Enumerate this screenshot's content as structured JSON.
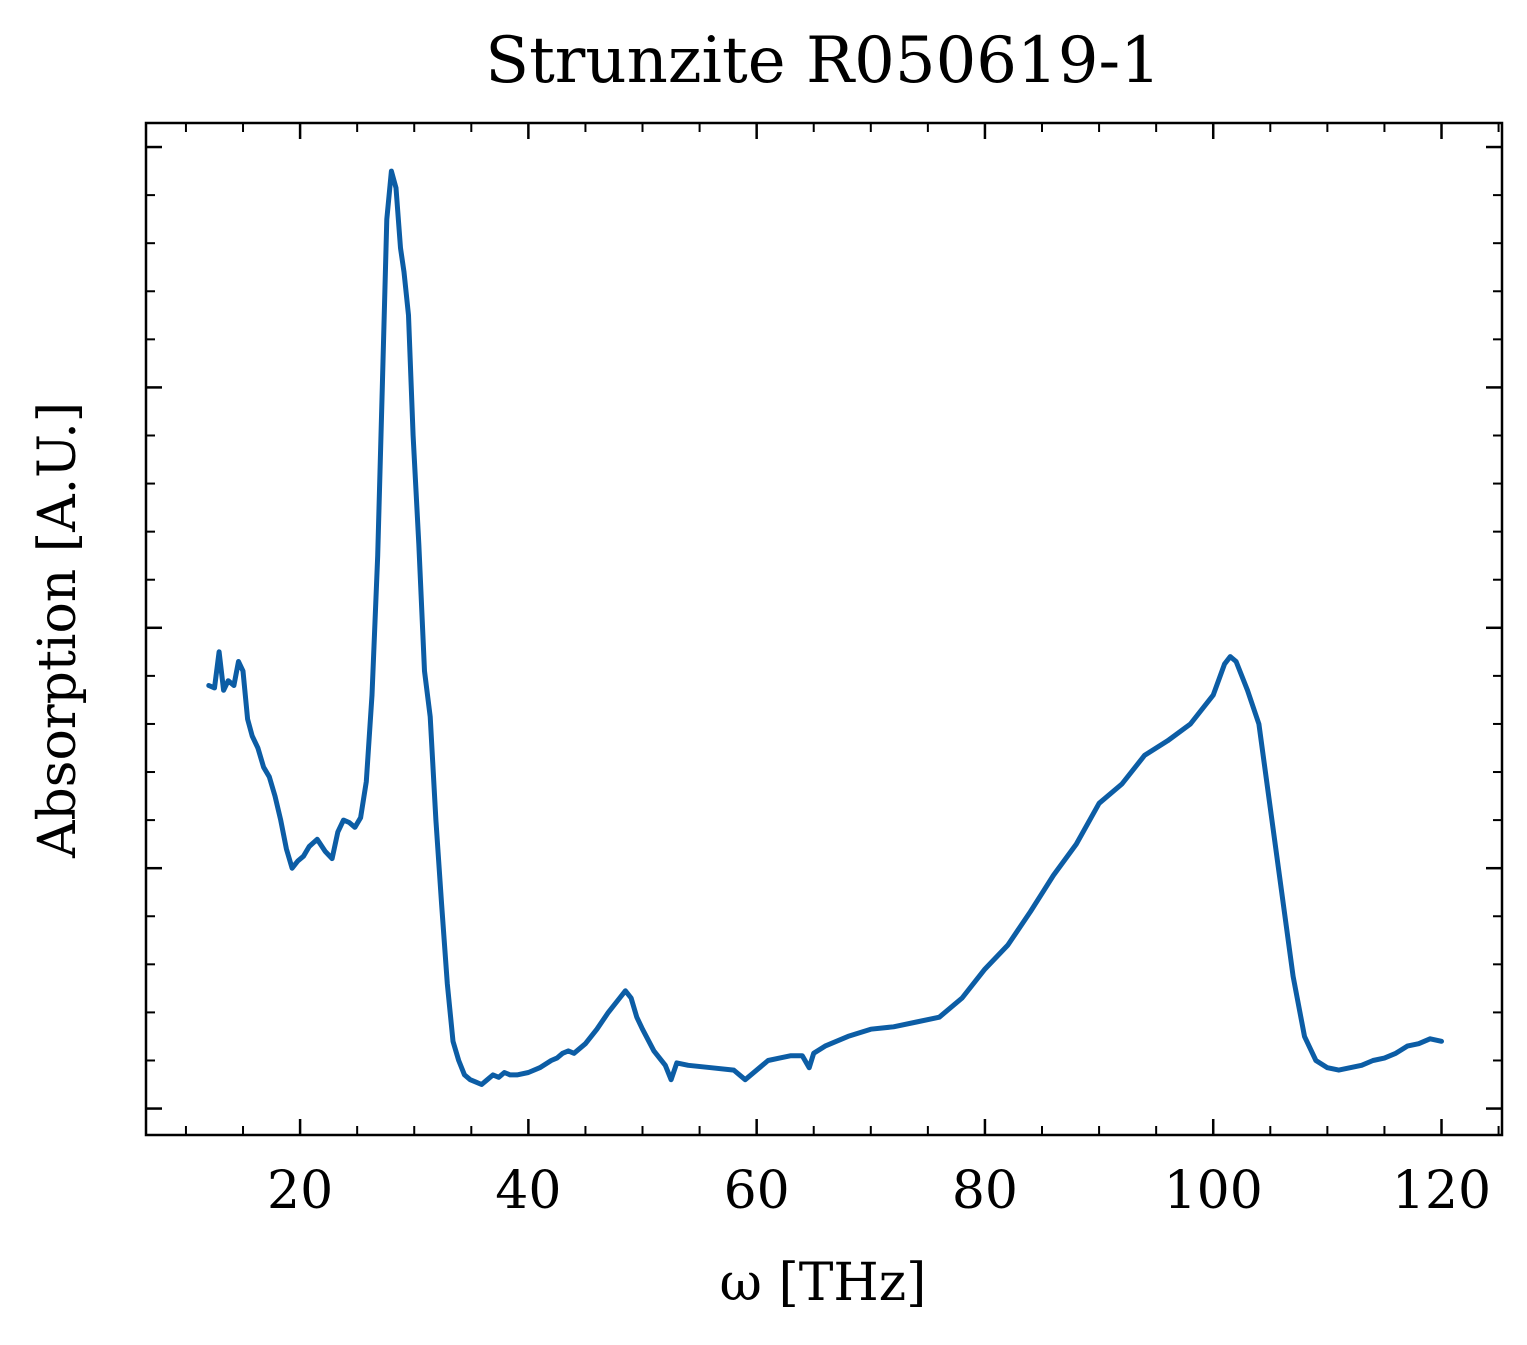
{
  "chart_data": {
    "type": "line",
    "title": "Strunzite R050619-1",
    "xlabel": "ω [THz]",
    "ylabel": "Absorption [A.U.]",
    "xlim": [
      6.5,
      125.3
    ],
    "ylim": [
      -0.11,
      4.1
    ],
    "x_ticks": [
      20,
      40,
      60,
      80,
      100,
      120
    ],
    "x_tick_labels": [
      "20",
      "40",
      "60",
      "80",
      "100",
      "120"
    ],
    "y_ticks_unlabeled": [
      0,
      1,
      2,
      3,
      4
    ],
    "line_color": "#0c5da5",
    "grid": false,
    "legend": "none",
    "series": [
      {
        "x": [
          12.0,
          12.5,
          12.9,
          13.3,
          13.7,
          14.2,
          14.6,
          15.0,
          15.4,
          15.8,
          16.3,
          16.8,
          17.3,
          17.8,
          18.3,
          18.8,
          19.3,
          19.8,
          20.3,
          20.8,
          21.5,
          22.2,
          22.8,
          23.3,
          23.8,
          24.3,
          24.8,
          25.3,
          25.8,
          26.3,
          26.8,
          27.2,
          27.6,
          28.0,
          28.4,
          28.8,
          29.1,
          29.5,
          29.9,
          30.4,
          30.9,
          31.4,
          31.9,
          32.4,
          32.9,
          33.4,
          33.9,
          34.4,
          34.9,
          35.4,
          35.9,
          36.4,
          36.9,
          37.4,
          37.9,
          38.4,
          39.0,
          40.0,
          41.0,
          42.0,
          42.5,
          43.0,
          43.5,
          44.0,
          45.0,
          46.0,
          47.0,
          48.0,
          48.5,
          49.0,
          49.5,
          50.0,
          51.0,
          52.0,
          52.5,
          53.0,
          54.0,
          56.0,
          58.0,
          59.0,
          60.0,
          61.0,
          62.0,
          63.0,
          64.0,
          64.6,
          65.0,
          66.0,
          68.0,
          70.0,
          72.0,
          74.0,
          76.0,
          78.0,
          80.0,
          82.0,
          84.0,
          86.0,
          88.0,
          90.0,
          92.0,
          94.0,
          96.0,
          98.0,
          100.0,
          101.0,
          101.5,
          102.0,
          103.0,
          104.0,
          105.0,
          106.0,
          107.0,
          108.0,
          109.0,
          110.0,
          111.0,
          112.0,
          113.0,
          114.0,
          115.0,
          116.0,
          117.0,
          118.0,
          119.0,
          120.0
        ],
        "y": [
          1.76,
          1.75,
          1.9,
          1.74,
          1.78,
          1.76,
          1.86,
          1.82,
          1.62,
          1.55,
          1.5,
          1.42,
          1.38,
          1.3,
          1.2,
          1.08,
          1.0,
          1.03,
          1.05,
          1.09,
          1.12,
          1.07,
          1.04,
          1.15,
          1.2,
          1.19,
          1.17,
          1.21,
          1.36,
          1.72,
          2.3,
          3.0,
          3.7,
          3.9,
          3.83,
          3.58,
          3.48,
          3.3,
          2.8,
          2.35,
          1.82,
          1.63,
          1.2,
          0.85,
          0.52,
          0.28,
          0.2,
          0.14,
          0.12,
          0.11,
          0.1,
          0.12,
          0.14,
          0.13,
          0.15,
          0.14,
          0.14,
          0.15,
          0.17,
          0.2,
          0.21,
          0.23,
          0.24,
          0.23,
          0.27,
          0.33,
          0.4,
          0.46,
          0.49,
          0.46,
          0.38,
          0.33,
          0.24,
          0.18,
          0.12,
          0.19,
          0.18,
          0.17,
          0.16,
          0.12,
          0.16,
          0.2,
          0.21,
          0.22,
          0.22,
          0.17,
          0.23,
          0.26,
          0.3,
          0.33,
          0.34,
          0.36,
          0.38,
          0.46,
          0.58,
          0.68,
          0.82,
          0.97,
          1.1,
          1.27,
          1.35,
          1.47,
          1.53,
          1.6,
          1.72,
          1.85,
          1.88,
          1.86,
          1.74,
          1.6,
          1.25,
          0.9,
          0.55,
          0.3,
          0.2,
          0.17,
          0.16,
          0.17,
          0.18,
          0.2,
          0.21,
          0.23,
          0.26,
          0.27,
          0.29,
          0.28
        ]
      }
    ]
  }
}
